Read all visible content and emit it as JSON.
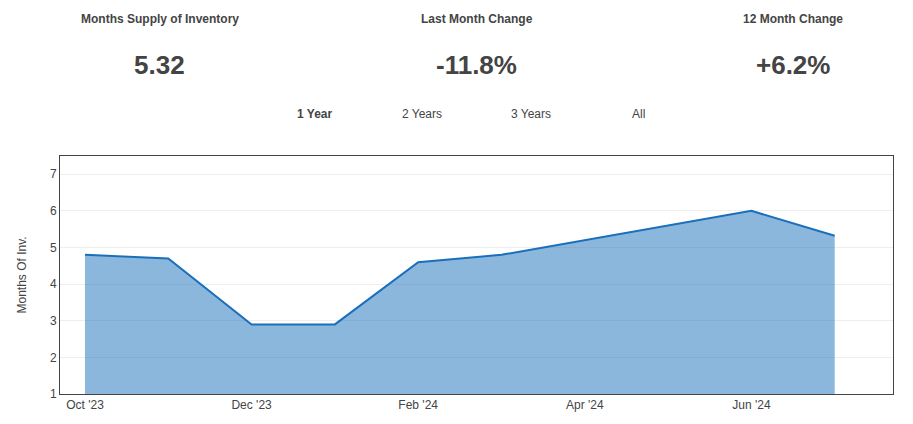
{
  "chart_data": {
    "type": "area",
    "annotations": [
      "Months Supply of Inventory",
      "5.32",
      "Last Month Change",
      "-11.8%",
      "12 Month Change",
      "+6.2%",
      "1 Year",
      "2 Years",
      "3 Years",
      "All"
    ],
    "x": [
      0,
      1,
      2,
      3,
      4,
      5,
      8,
      9
    ],
    "series": [
      {
        "name": "Months Of Inv.",
        "color": "#1a6fba",
        "values": [
          4.8,
          4.7,
          2.9,
          2.9,
          4.6,
          4.8,
          6.0,
          5.32
        ]
      }
    ],
    "ylabel": "Months Of Inv.",
    "xlim": [
      -0.3,
      9.7
    ],
    "xticks": [
      {
        "value": 0,
        "label": "Oct '23"
      },
      {
        "value": 2,
        "label": "Dec '23"
      },
      {
        "value": 4,
        "label": "Feb '24"
      },
      {
        "value": 6,
        "label": "Apr '24"
      },
      {
        "value": 8,
        "label": "Jun '24"
      }
    ],
    "ylim": [
      1,
      7.5
    ],
    "yticks": [
      1,
      2,
      3,
      4,
      5,
      6,
      7
    ],
    "grid": true
  }
}
